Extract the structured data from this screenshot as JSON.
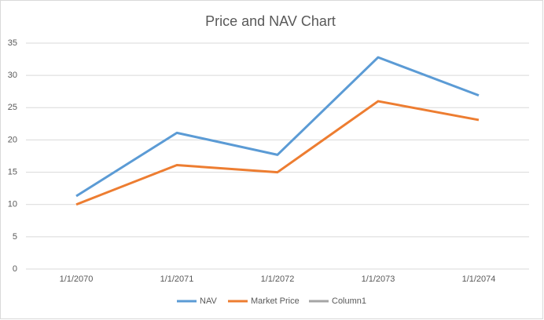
{
  "chart_data": {
    "type": "line",
    "title": "Price and NAV Chart",
    "categories": [
      "1/1/2070",
      "1/1/2071",
      "1/1/2072",
      "1/1/2073",
      "1/1/2074"
    ],
    "series": [
      {
        "name": "NAV",
        "color": "#5b9bd5",
        "values": [
          11.3,
          21.1,
          17.7,
          32.8,
          26.9
        ]
      },
      {
        "name": "Market Price",
        "color": "#ed7d31",
        "values": [
          10,
          16.1,
          15,
          26,
          23.1
        ]
      },
      {
        "name": "Column1",
        "color": "#a5a5a5",
        "values": [
          null,
          null,
          null,
          null,
          null
        ]
      }
    ],
    "ylim": [
      0,
      35
    ],
    "yticks": [
      0,
      5,
      10,
      15,
      20,
      25,
      30,
      35
    ],
    "grid": true,
    "legend": "bottom"
  }
}
